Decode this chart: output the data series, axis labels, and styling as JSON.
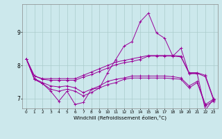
{
  "title": "",
  "xlabel": "Windchill (Refroidissement éolien,°C)",
  "ylabel": "",
  "background_color": "#cce8ec",
  "grid_color": "#aacccc",
  "line_color": "#990099",
  "xlim": [
    -0.5,
    23.5
  ],
  "ylim": [
    6.7,
    9.85
  ],
  "yticks": [
    7,
    8,
    9
  ],
  "xticks": [
    0,
    1,
    2,
    3,
    4,
    5,
    6,
    7,
    8,
    9,
    10,
    11,
    12,
    13,
    14,
    15,
    16,
    17,
    18,
    19,
    20,
    21,
    22,
    23
  ],
  "series": [
    [
      8.2,
      7.68,
      7.6,
      7.6,
      7.6,
      7.6,
      7.6,
      7.7,
      7.8,
      7.9,
      8.0,
      8.1,
      8.15,
      8.2,
      8.25,
      8.3,
      8.3,
      8.3,
      8.3,
      8.28,
      7.78,
      7.78,
      7.7,
      7.0
    ],
    [
      8.2,
      7.68,
      7.58,
      7.55,
      7.55,
      7.55,
      7.55,
      7.65,
      7.72,
      7.82,
      7.92,
      8.02,
      8.08,
      8.12,
      8.18,
      8.28,
      8.28,
      8.28,
      8.28,
      8.26,
      7.76,
      7.76,
      7.66,
      6.96
    ],
    [
      8.2,
      7.6,
      7.48,
      7.38,
      7.35,
      7.38,
      7.32,
      7.18,
      7.28,
      7.38,
      7.52,
      7.58,
      7.62,
      7.68,
      7.68,
      7.68,
      7.68,
      7.68,
      7.66,
      7.62,
      7.38,
      7.52,
      6.82,
      6.98
    ],
    [
      8.2,
      7.58,
      7.45,
      7.28,
      7.22,
      7.28,
      7.22,
      7.08,
      7.18,
      7.32,
      7.42,
      7.48,
      7.58,
      7.62,
      7.62,
      7.62,
      7.62,
      7.62,
      7.6,
      7.58,
      7.32,
      7.48,
      6.78,
      6.92
    ],
    [
      8.2,
      7.58,
      7.45,
      7.22,
      6.92,
      7.22,
      6.82,
      6.88,
      7.28,
      7.32,
      7.78,
      8.18,
      8.58,
      8.72,
      9.32,
      9.58,
      8.98,
      8.82,
      8.28,
      8.52,
      7.75,
      7.75,
      6.65,
      6.98
    ]
  ]
}
